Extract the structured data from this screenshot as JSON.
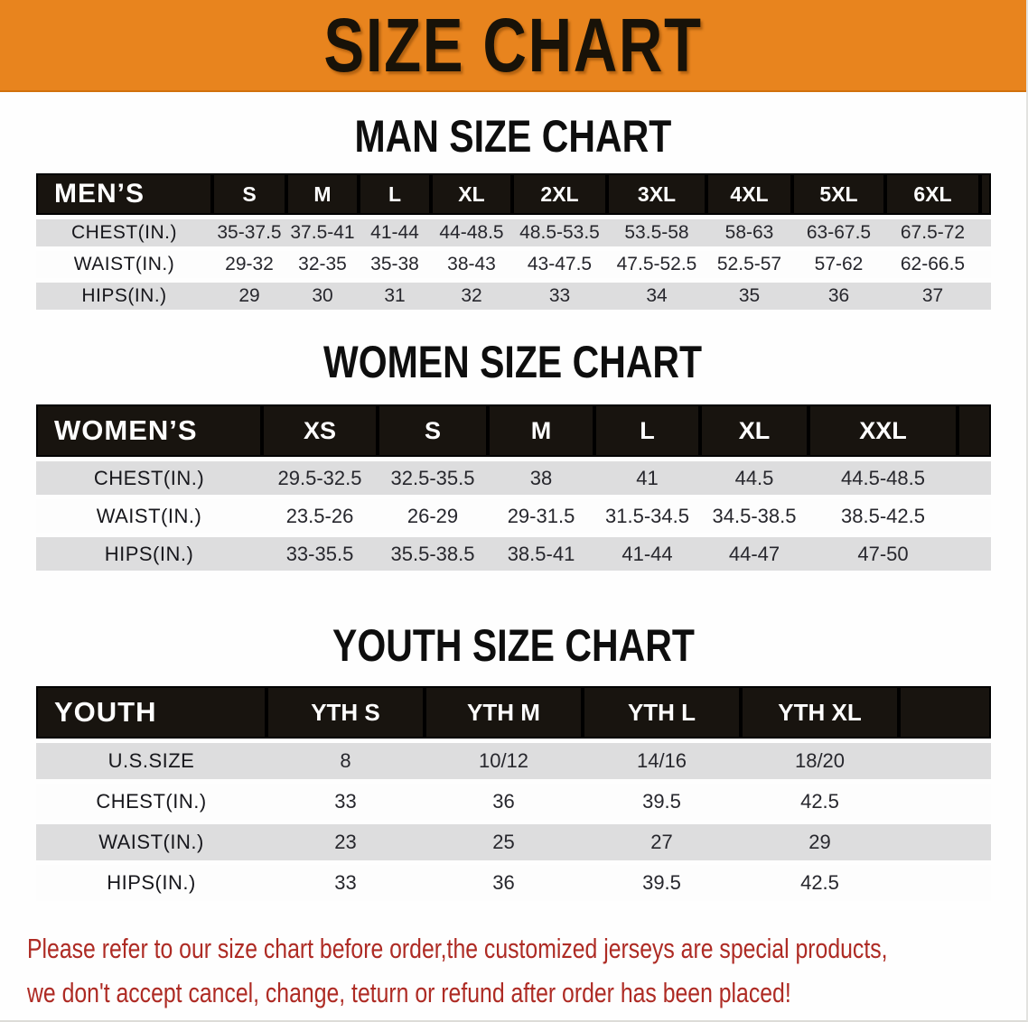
{
  "banner": {
    "title": "SIZE CHART",
    "bg_color": "#E8841E"
  },
  "sections": [
    {
      "id": "men",
      "heading": "MAN SIZE CHART",
      "header_label": "MEN’S",
      "columns": [
        "S",
        "M",
        "L",
        "XL",
        "2XL",
        "3XL",
        "4XL",
        "5XL",
        "6XL"
      ],
      "rows": [
        {
          "label": "CHEST(IN.)",
          "values": [
            "35-37.5",
            "37.5-41",
            "41-44",
            "44-48.5",
            "48.5-53.5",
            "53.5-58",
            "58-63",
            "63-67.5",
            "67.5-72"
          ]
        },
        {
          "label": "WAIST(IN.)",
          "values": [
            "29-32",
            "32-35",
            "35-38",
            "38-43",
            "43-47.5",
            "47.5-52.5",
            "52.5-57",
            "57-62",
            "62-66.5"
          ]
        },
        {
          "label": "HIPS(IN.)",
          "values": [
            "29",
            "30",
            "31",
            "32",
            "33",
            "34",
            "35",
            "36",
            "37"
          ]
        }
      ]
    },
    {
      "id": "women",
      "heading": "WOMEN SIZE CHART",
      "header_label": "WOMEN’S",
      "columns": [
        "XS",
        "S",
        "M",
        "L",
        "XL",
        "XXL"
      ],
      "rows": [
        {
          "label": "CHEST(IN.)",
          "values": [
            "29.5-32.5",
            "32.5-35.5",
            "38",
            "41",
            "44.5",
            "44.5-48.5"
          ]
        },
        {
          "label": "WAIST(IN.)",
          "values": [
            "23.5-26",
            "26-29",
            "29-31.5",
            "31.5-34.5",
            "34.5-38.5",
            "38.5-42.5"
          ]
        },
        {
          "label": "HIPS(IN.)",
          "values": [
            "33-35.5",
            "35.5-38.5",
            "38.5-41",
            "41-44",
            "44-47",
            "47-50"
          ]
        }
      ]
    },
    {
      "id": "youth",
      "heading": "YOUTH SIZE CHART",
      "header_label": "YOUTH",
      "columns": [
        "YTH S",
        "YTH M",
        "YTH L",
        "YTH XL"
      ],
      "rows": [
        {
          "label": "U.S.SIZE",
          "values": [
            "8",
            "10/12",
            "14/16",
            "18/20"
          ]
        },
        {
          "label": "CHEST(IN.)",
          "values": [
            "33",
            "36",
            "39.5",
            "42.5"
          ]
        },
        {
          "label": "WAIST(IN.)",
          "values": [
            "23",
            "25",
            "27",
            "29"
          ]
        },
        {
          "label": "HIPS(IN.)",
          "values": [
            "33",
            "36",
            "39.5",
            "42.5"
          ]
        }
      ]
    }
  ],
  "footer": {
    "line1": "Please refer to our size chart before order,the customized jerseys are special products,",
    "line2": "we don't accept cancel, change, teturn or refund after order has been placed!",
    "text_color": "#AE2B24"
  },
  "colors": {
    "header_bar": "#18140f",
    "shaded_row": "#DDDDDE"
  }
}
